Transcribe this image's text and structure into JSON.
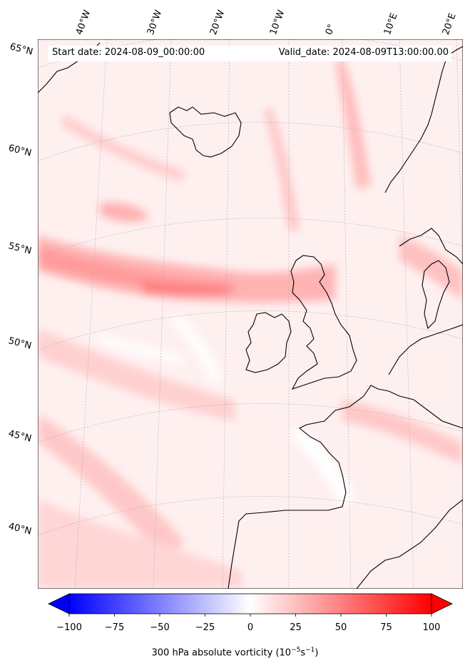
{
  "header": {
    "start_date": "Start date: 2024-08-09_00:00:00",
    "valid_date": "Valid_date: 2024-08-09T13:00:00.00"
  },
  "longitude_labels": [
    "40°W",
    "30°W",
    "20°W",
    "10°W",
    "0°",
    "10°E",
    "20°E"
  ],
  "latitude_labels": [
    "65°N",
    "60°N",
    "55°N",
    "50°N",
    "45°N",
    "40°N"
  ],
  "colorbar": {
    "ticks": [
      "−100",
      "−75",
      "−50",
      "−25",
      "0",
      "25",
      "50",
      "75",
      "100"
    ],
    "tick_values": [
      -100,
      -75,
      -50,
      -25,
      0,
      25,
      50,
      75,
      100
    ],
    "label_main": "300 hPa absolute vorticity (10",
    "label_exp1": "−5",
    "label_mid": "s",
    "label_exp2": "−1",
    "label_end": ")",
    "colormap": "bwr",
    "extend": "both",
    "low_color": "#0000ff",
    "mid_color": "#ffffff",
    "high_color": "#ff0000"
  },
  "map": {
    "projection": "lambert-conformal",
    "coastline_color": "#000000",
    "gridline_color": "#999999",
    "background_tint": "#ffe6e6"
  }
}
